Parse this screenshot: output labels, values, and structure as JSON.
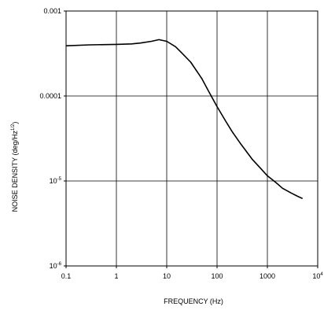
{
  "chart_data": {
    "type": "line",
    "xlabel": "FREQUENCY (Hz)",
    "ylabel": {
      "main": "NOISE DENSITY (deg/Hz",
      "exponent": "1/2",
      "close": ")"
    },
    "xscale": "log",
    "yscale": "log",
    "xlim": [
      0.1,
      10000
    ],
    "ylim": [
      1e-06,
      0.001
    ],
    "grid": true,
    "x_ticks": [
      {
        "value": 0.1,
        "label": "0.1"
      },
      {
        "value": 1,
        "label": "1"
      },
      {
        "value": 10,
        "label": "10"
      },
      {
        "value": 100,
        "label": "100"
      },
      {
        "value": 1000,
        "label": "1000"
      },
      {
        "value": 10000,
        "label": "10",
        "exponent": "4"
      }
    ],
    "y_ticks": [
      {
        "value": 0.001,
        "label": "0.001"
      },
      {
        "value": 0.0001,
        "label": "0.0001"
      },
      {
        "value": 1e-05,
        "label": "10",
        "exponent": "-5"
      },
      {
        "value": 1e-06,
        "label": "10",
        "exponent": "-6"
      }
    ],
    "colors": {
      "line": "#000000",
      "grid": "#000000",
      "frame": "#000000"
    },
    "series": [
      {
        "x": [
          0.1,
          0.3,
          1,
          2,
          3,
          5,
          7,
          10,
          15,
          20,
          30,
          50,
          70,
          100,
          150,
          200,
          300,
          500,
          700,
          1000,
          1500,
          2000,
          3000,
          4000,
          5000
        ],
        "y": [
          0.00039,
          0.0004,
          0.000405,
          0.00041,
          0.00042,
          0.00044,
          0.00046,
          0.00044,
          0.00038,
          0.00032,
          0.00025,
          0.00016,
          0.00011,
          7.5e-05,
          5e-05,
          3.8e-05,
          2.7e-05,
          1.8e-05,
          1.45e-05,
          1.15e-05,
          9.5e-06,
          8.2e-06,
          7.2e-06,
          6.6e-06,
          6.2e-06
        ]
      }
    ]
  }
}
